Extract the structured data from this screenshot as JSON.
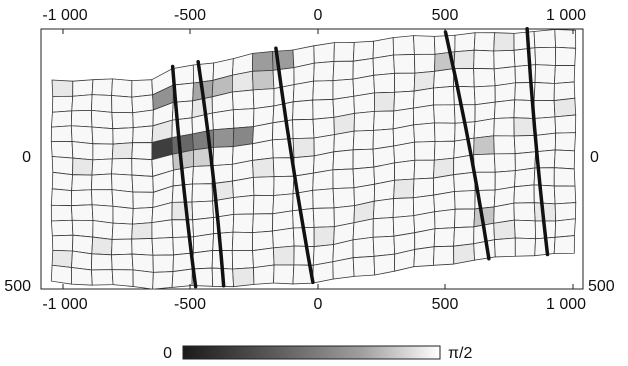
{
  "x_axis_labels": [
    "-1 000",
    "-500",
    "0",
    "500",
    "1 000"
  ],
  "y_axis_labels": [
    "0",
    "500"
  ],
  "colorbar": {
    "min_label": "0",
    "max_label": "π/2",
    "stops": [
      "#1a1a1a",
      "#5a5a5a",
      "#a0a0a0",
      "#ffffff"
    ]
  },
  "grid": {
    "columns": 26,
    "rows": 13,
    "dark_cells": [
      {
        "col": 5,
        "row": 4,
        "shade": 0.15
      },
      {
        "col": 6,
        "row": 4,
        "shade": 0.35
      },
      {
        "col": 7,
        "row": 4,
        "shade": 0.45
      },
      {
        "col": 8,
        "row": 4,
        "shade": 0.55
      },
      {
        "col": 9,
        "row": 4,
        "shade": 0.5
      },
      {
        "col": 5,
        "row": 1,
        "shade": 0.55
      },
      {
        "col": 7,
        "row": 1,
        "shade": 0.65
      },
      {
        "col": 8,
        "row": 1,
        "shade": 0.75
      },
      {
        "col": 10,
        "row": 0,
        "shade": 0.6
      },
      {
        "col": 11,
        "row": 0,
        "shade": 0.6
      },
      {
        "col": 10,
        "row": 1,
        "shade": 0.8
      },
      {
        "col": 6,
        "row": 5,
        "shade": 0.8
      },
      {
        "col": 7,
        "row": 5,
        "shade": 0.85
      },
      {
        "col": 19,
        "row": 1,
        "shade": 0.8
      },
      {
        "col": 21,
        "row": 6,
        "shade": 0.8
      },
      {
        "col": 21,
        "row": 10,
        "shade": 0.8
      }
    ]
  },
  "faults": [
    {
      "x_top": -570,
      "x_bottom": -480
    },
    {
      "x_top": -470,
      "x_bottom": -370
    },
    {
      "x_top": -165,
      "x_bottom": -20
    },
    {
      "x_top": 500,
      "x_bottom": 670
    },
    {
      "x_top": 820,
      "x_bottom": 900
    }
  ]
}
